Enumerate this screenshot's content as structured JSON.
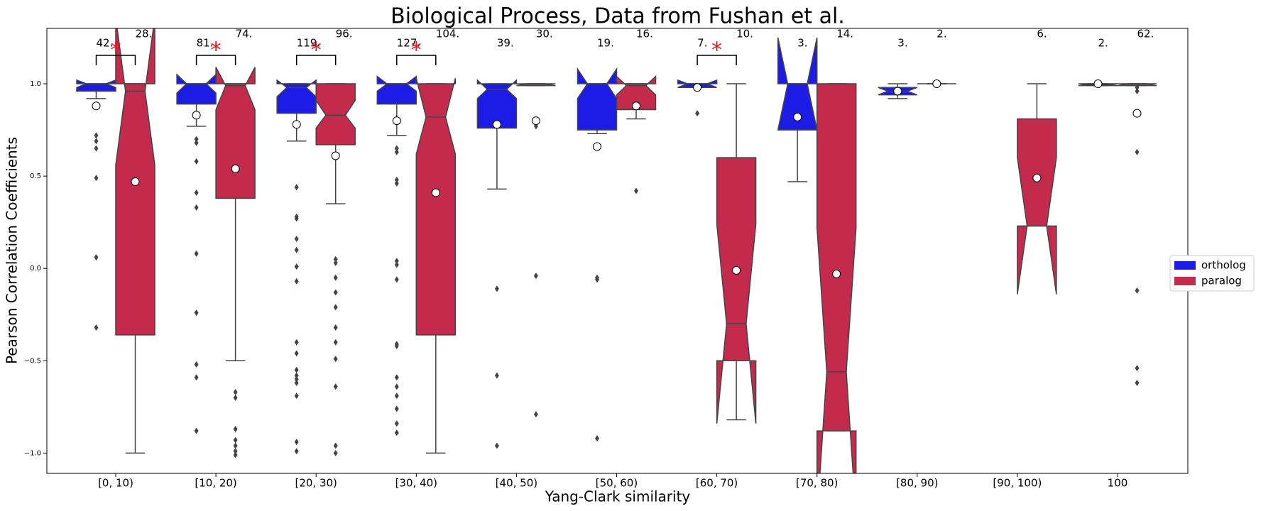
{
  "chart_data": {
    "type": "boxplot",
    "title": "Biological Process, Data from Fushan et al.",
    "x_label": "Yang-Clark similarity",
    "y_label": "Pearson Correlation Coefficients",
    "categories": [
      "[0, 10)",
      "[10, 20)",
      "[20, 30)",
      "[30, 40)",
      "[40, 50)",
      "[50, 60)",
      "[60, 70)",
      "[70, 80)",
      "[80, 90)",
      "[90, 100)",
      "100"
    ],
    "ylim": [
      -1.11,
      1.3
    ],
    "yticks": [
      {
        "value": -1,
        "label": "−1.0"
      },
      {
        "value": -0.5,
        "label": "−0.5"
      },
      {
        "value": 0,
        "label": "0.0"
      },
      {
        "value": 0.5,
        "label": "0.5"
      },
      {
        "value": 1,
        "label": "1.0"
      }
    ],
    "legend": "right",
    "significance_marker": "*",
    "significant": [
      true,
      true,
      true,
      true,
      false,
      false,
      true,
      false,
      false,
      false,
      false
    ],
    "series": [
      {
        "name": "ortholog",
        "color": "#1c1ce6",
        "q1": [
          0.96,
          0.89,
          0.84,
          0.89,
          0.76,
          0.75,
          0.98,
          0.75,
          0.94,
          null,
          0.99
        ],
        "median": [
          1.0,
          1.0,
          0.98,
          1.0,
          0.97,
          1.0,
          1.0,
          1.0,
          0.96,
          null,
          1.0
        ],
        "q3": [
          1.0,
          1.0,
          1.0,
          1.0,
          1.0,
          1.0,
          1.0,
          1.0,
          0.98,
          null,
          1.0
        ],
        "notch_low": [
          0.98,
          0.95,
          0.93,
          0.96,
          0.92,
          0.92,
          0.98,
          0.75,
          0.94,
          null,
          0.99
        ],
        "notch_high": [
          1.02,
          1.05,
          1.02,
          1.04,
          1.02,
          1.08,
          1.02,
          1.25,
          0.98,
          null,
          1.0
        ],
        "whisker_low": [
          0.92,
          0.77,
          0.69,
          0.72,
          0.43,
          0.73,
          0.98,
          0.47,
          0.92,
          null,
          0.99
        ],
        "whisker_high": [
          1.0,
          1.0,
          1.0,
          1.0,
          1.0,
          1.0,
          1.0,
          1.0,
          1.0,
          null,
          1.0
        ],
        "mean": [
          0.88,
          0.83,
          0.78,
          0.8,
          0.78,
          0.66,
          0.98,
          0.82,
          0.96,
          null,
          1.0
        ],
        "outliers": [
          [
            0.72,
            0.69,
            0.65,
            0.49,
            0.06,
            -0.32
          ],
          [
            0.7,
            0.68,
            0.58,
            0.41,
            0.33,
            0.08,
            -0.24,
            -0.52,
            -0.59,
            -0.88
          ],
          [
            0.44,
            0.28,
            0.27,
            0.16,
            0.1,
            0.01,
            -0.07,
            -0.4,
            -0.46,
            -0.55,
            -0.58,
            -0.6,
            -0.62,
            -0.69,
            -0.94,
            -0.99
          ],
          [
            0.65,
            0.63,
            0.48,
            0.46,
            0.04,
            0.02,
            -0.06,
            -0.41,
            -0.42,
            -0.59,
            -0.64,
            -0.69,
            -0.76,
            -0.84,
            -0.89
          ],
          [
            -0.11,
            -0.58,
            -0.96
          ],
          [
            -0.05,
            -0.06,
            -0.92
          ],
          [
            0.84
          ],
          [],
          [],
          [],
          []
        ],
        "counts": [
          "42.",
          "81.",
          "119.",
          "127.",
          "39.",
          "19.",
          "7.",
          "3.",
          "3.",
          null,
          "2."
        ]
      },
      {
        "name": "paralog",
        "color": "#c42a4b",
        "q1": [
          -0.36,
          0.38,
          0.67,
          -0.36,
          0.99,
          0.86,
          -0.5,
          -0.88,
          1.0,
          0.23,
          0.99
        ],
        "median": [
          0.96,
          0.99,
          0.83,
          0.82,
          1.0,
          0.99,
          -0.3,
          -0.56,
          1.0,
          0.23,
          1.0
        ],
        "q3": [
          1.0,
          1.0,
          1.0,
          1.0,
          1.0,
          1.0,
          0.6,
          1.0,
          1.0,
          0.81,
          1.0
        ],
        "notch_low": [
          0.56,
          0.86,
          0.76,
          0.62,
          0.99,
          0.94,
          -0.84,
          -1.35,
          1.0,
          -0.14,
          0.99
        ],
        "notch_high": [
          1.36,
          1.09,
          0.91,
          1.03,
          1.0,
          1.04,
          0.24,
          0.22,
          1.0,
          0.6,
          1.0
        ],
        "whisker_low": [
          -1.0,
          -0.5,
          0.35,
          -1.0,
          0.99,
          0.81,
          -0.82,
          -0.88,
          1.0,
          0.23,
          0.99
        ],
        "whisker_high": [
          1.0,
          1.0,
          1.0,
          1.0,
          1.0,
          1.0,
          1.0,
          1.0,
          1.0,
          1.0,
          1.0
        ],
        "mean": [
          0.47,
          0.54,
          0.61,
          0.41,
          0.8,
          0.88,
          -0.01,
          -0.03,
          1.0,
          0.49,
          0.84
        ],
        "outliers": [
          [],
          [
            -0.67,
            -0.7,
            -0.87,
            -0.93,
            -0.96,
            -0.99,
            -1.01
          ],
          [
            0.05,
            0.03,
            -0.05,
            -0.13,
            -0.21,
            -0.32,
            -0.4,
            -0.49,
            -0.64,
            -0.96,
            -1.0
          ],
          [],
          [
            0.77,
            -0.04,
            -0.79
          ],
          [
            0.42
          ],
          [],
          [],
          [],
          [],
          [
            0.98,
            0.96,
            0.63,
            -0.12,
            -0.54,
            -0.62
          ]
        ],
        "counts": [
          "28.",
          "74.",
          "96.",
          "104.",
          "30.",
          "16.",
          "10.",
          "14.",
          "2.",
          "6.",
          "62."
        ]
      }
    ]
  }
}
